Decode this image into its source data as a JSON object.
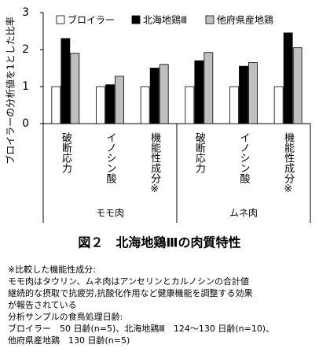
{
  "chart_data": {
    "type": "bar",
    "y_label": "ブロイラーの分析値を1とした比率",
    "categories": [
      "破断応力",
      "イノシン酸",
      "機能性成分※",
      "破断応力",
      "イノシン酸",
      "機能性成分※"
    ],
    "groups": [
      "モモ肉",
      "ムネ肉"
    ],
    "series": [
      {
        "name": "ブロイラー",
        "color": "#ffffff",
        "values": [
          1,
          1,
          1,
          1,
          1,
          1
        ]
      },
      {
        "name": "北海地鶏Ⅲ",
        "color": "#000000",
        "values": [
          2.3,
          1.05,
          1.5,
          1.7,
          1.55,
          2.45
        ]
      },
      {
        "name": "他府県産地鶏",
        "color": "#bfbfbf",
        "values": [
          1.9,
          1.28,
          1.6,
          1.92,
          1.65,
          2.05
        ]
      }
    ],
    "ylim": [
      0,
      3
    ],
    "yticks": [
      0,
      1,
      2,
      3
    ],
    "grid": false
  },
  "caption": "図２　北海地鶏Ⅲの肉質特性",
  "notes": [
    "※比較した機能性成分:",
    "モモ肉はタウリン、ムネ肉はアンセリンとカルノシンの合計値",
    "継続的な摂取で抗疲労,抗酸化作用など健康機能を調整する効果",
    "が報告されている",
    "分析サンプルの食鳥処理日齢:",
    "ブロイラー　50 日齢(n=5)、北海地鶏Ⅲ　124～130 日齢(n=10)、",
    "他府県産地鶏　130 日齢(n=5)"
  ]
}
